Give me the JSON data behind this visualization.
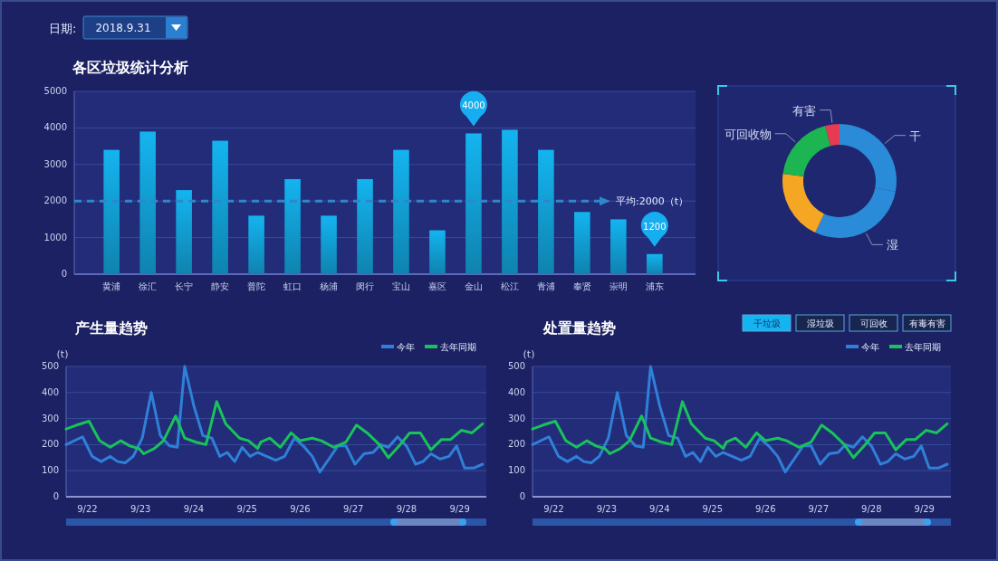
{
  "chart_data": [
    {
      "type": "bar",
      "title": "各区垃圾统计分析",
      "categories": [
        "黄浦",
        "徐汇",
        "长宁",
        "静安",
        "普陀",
        "虹口",
        "杨浦",
        "闵行",
        "宝山",
        "嘉区",
        "金山",
        "松江",
        "青浦",
        "奉贤",
        "崇明",
        "浦东"
      ],
      "values": [
        3400,
        3900,
        2300,
        3650,
        1600,
        2600,
        1600,
        2600,
        3400,
        1200,
        3850,
        3950,
        3400,
        1700,
        1500,
        550
      ],
      "color": "#14b4f0",
      "ylim": [
        0,
        5000
      ],
      "yticks": [
        0,
        1000,
        2000,
        3000,
        4000,
        5000
      ],
      "grid": "y",
      "ref_lines": [
        {
          "axis": "y",
          "value": 2000,
          "label": "平均:2000（t）",
          "color": "#2f86cc",
          "line_style": "dashed"
        }
      ],
      "annotations": [
        "日期:",
        "2018.9.31",
        "4000",
        "1200"
      ]
    },
    {
      "type": "donut",
      "categories": [
        "干",
        "湿",
        null,
        "可回收物",
        "有害"
      ],
      "values": [
        28,
        29,
        20,
        19,
        4
      ],
      "colors": [
        "#2a8bd8",
        "#2a8bd8",
        "#f5a623",
        "#1db552",
        "#e83a50"
      ]
    },
    {
      "type": "line",
      "title": "产生量趋势",
      "ylabel": "(t)",
      "xlim": [
        "--09-21T14:24",
        "--09-29T12:00"
      ],
      "xticks": [
        {
          "value": "--09-22",
          "label": "9/22"
        },
        {
          "value": "--09-23",
          "label": "9/23"
        },
        {
          "value": "--09-24",
          "label": "9/24"
        },
        {
          "value": "--09-25",
          "label": "9/25"
        },
        {
          "value": "--09-26",
          "label": "9/26"
        },
        {
          "value": "--09-27",
          "label": "9/27"
        },
        {
          "value": "--09-28",
          "label": "9/28"
        },
        {
          "value": "--09-29",
          "label": "9/29"
        }
      ],
      "ylim": [
        0,
        500
      ],
      "yticks": [
        0,
        100,
        200,
        300,
        400,
        500
      ],
      "grid": "y",
      "legend": "top right",
      "series": [
        {
          "name": "今年",
          "color": "#2f80d8",
          "x": [
            "--09-21T14:24",
            "--09-21T21:50",
            "--09-22T02:10",
            "--09-22T06:15",
            "--09-22T10:20",
            "--09-22T13:40",
            "--09-22T17:00",
            "--09-22T20:40",
            "--09-23T00:45",
            "--09-23T04:50",
            "--09-23T08:55",
            "--09-23T13:00",
            "--09-23T16:35",
            "--09-23T19:55",
            "--09-24T00:00",
            "--09-24T04:05",
            "--09-24T08:10",
            "--09-24T11:45",
            "--09-24T15:05",
            "--09-24T18:30",
            "--09-24T21:50",
            "--09-25T01:25",
            "--09-25T04:50",
            "--09-25T08:55",
            "--09-25T13:00",
            "--09-25T17:00",
            "--09-25T21:20",
            "--09-26T01:25",
            "--09-26T05:30",
            "--09-26T08:55",
            "--09-26T13:00",
            "--09-26T17:00",
            "--09-26T20:40",
            "--09-27T00:45",
            "--09-27T04:50",
            "--09-27T08:55",
            "--09-27T12:15",
            "--09-27T15:50",
            "--09-27T19:55",
            "--09-28T00:00",
            "--09-28T04:05",
            "--09-28T07:25",
            "--09-28T11:00",
            "--09-28T15:05",
            "--09-28T19:10",
            "--09-28T22:35",
            "--09-29T02:10",
            "--09-29T06:15",
            "--09-29T10:20"
          ],
          "values": [
            200,
            230,
            155,
            135,
            155,
            135,
            130,
            155,
            225,
            400,
            235,
            195,
            190,
            500,
            350,
            235,
            225,
            155,
            170,
            135,
            190,
            155,
            170,
            155,
            140,
            155,
            225,
            195,
            155,
            95,
            145,
            195,
            195,
            125,
            165,
            170,
            200,
            190,
            230,
            195,
            125,
            135,
            165,
            145,
            155,
            195,
            110,
            110,
            125
          ]
        },
        {
          "name": "去年同期",
          "color": "#19c25a",
          "x": [
            "--09-21T14:24",
            "--09-21T19:10",
            "--09-22T00:45",
            "--09-22T05:30",
            "--09-22T10:20",
            "--09-22T15:05",
            "--09-22T19:10",
            "--09-22T23:15",
            "--09-23T01:25",
            "--09-23T06:15",
            "--09-23T10:20",
            "--09-23T15:50",
            "--09-23T19:55",
            "--09-24T00:45",
            "--09-24T05:30",
            "--09-24T10:20",
            "--09-24T14:24",
            "--09-24T20:40",
            "--09-25T00:45",
            "--09-25T04:50",
            "--09-25T06:15",
            "--09-25T10:20",
            "--09-25T15:05",
            "--09-25T19:55",
            "--09-26T00:00",
            "--09-26T05:30",
            "--09-26T09:35",
            "--09-26T15:05",
            "--09-26T20:40",
            "--09-27T01:25",
            "--09-27T06:15",
            "--09-27T11:45",
            "--09-27T15:50",
            "--09-27T20:40",
            "--09-28T01:25",
            "--09-28T06:15",
            "--09-28T11:00",
            "--09-28T15:50",
            "--09-28T19:55",
            "--09-29T00:45",
            "--09-29T05:30",
            "--09-29T10:20"
          ],
          "values": [
            260,
            275,
            290,
            215,
            190,
            215,
            195,
            185,
            165,
            185,
            215,
            310,
            225,
            210,
            200,
            365,
            280,
            225,
            215,
            185,
            210,
            225,
            190,
            245,
            215,
            225,
            215,
            190,
            210,
            275,
            245,
            200,
            150,
            195,
            245,
            245,
            180,
            220,
            220,
            255,
            245,
            280
          ]
        }
      ]
    },
    {
      "type": "line",
      "title": "处置量趋势",
      "ylabel": "(t)",
      "xlim": [
        "--09-21T14:24",
        "--09-29T12:00"
      ],
      "xticks": [
        {
          "value": "--09-22",
          "label": "9/22"
        },
        {
          "value": "--09-23",
          "label": "9/23"
        },
        {
          "value": "--09-24",
          "label": "9/24"
        },
        {
          "value": "--09-25",
          "label": "9/25"
        },
        {
          "value": "--09-26",
          "label": "9/26"
        },
        {
          "value": "--09-27",
          "label": "9/27"
        },
        {
          "value": "--09-28",
          "label": "9/28"
        },
        {
          "value": "--09-29",
          "label": "9/29"
        }
      ],
      "ylim": [
        0,
        500
      ],
      "yticks": [
        0,
        100,
        200,
        300,
        400,
        500
      ],
      "grid": "y",
      "legend": "top right",
      "annotations": [
        "干垃圾",
        "湿垃圾",
        "可回收",
        "有毒有害"
      ],
      "series": [
        {
          "name": "今年",
          "color": "#2f80d8",
          "x": [
            "--09-21T14:24",
            "--09-21T21:50",
            "--09-22T02:10",
            "--09-22T06:15",
            "--09-22T10:20",
            "--09-22T13:40",
            "--09-22T17:00",
            "--09-22T20:40",
            "--09-23T00:45",
            "--09-23T04:50",
            "--09-23T08:55",
            "--09-23T13:00",
            "--09-23T16:35",
            "--09-23T19:55",
            "--09-24T00:00",
            "--09-24T04:05",
            "--09-24T08:10",
            "--09-24T11:45",
            "--09-24T15:05",
            "--09-24T18:30",
            "--09-24T21:50",
            "--09-25T01:25",
            "--09-25T04:50",
            "--09-25T08:55",
            "--09-25T13:00",
            "--09-25T17:00",
            "--09-25T21:20",
            "--09-26T01:25",
            "--09-26T05:30",
            "--09-26T08:55",
            "--09-26T13:00",
            "--09-26T17:00",
            "--09-26T20:40",
            "--09-27T00:45",
            "--09-27T04:50",
            "--09-27T08:55",
            "--09-27T12:15",
            "--09-27T15:50",
            "--09-27T19:55",
            "--09-28T00:00",
            "--09-28T04:05",
            "--09-28T07:25",
            "--09-28T11:00",
            "--09-28T15:05",
            "--09-28T19:10",
            "--09-28T22:35",
            "--09-29T02:10",
            "--09-29T06:15",
            "--09-29T10:20"
          ],
          "values": [
            200,
            230,
            155,
            135,
            155,
            135,
            130,
            155,
            225,
            400,
            235,
            195,
            190,
            500,
            350,
            235,
            225,
            155,
            170,
            135,
            190,
            155,
            170,
            155,
            140,
            155,
            225,
            195,
            155,
            95,
            145,
            195,
            195,
            125,
            165,
            170,
            200,
            190,
            230,
            195,
            125,
            135,
            165,
            145,
            155,
            195,
            110,
            110,
            125
          ]
        },
        {
          "name": "去年同期",
          "color": "#19c25a",
          "x": [
            "--09-21T14:24",
            "--09-21T19:10",
            "--09-22T00:45",
            "--09-22T05:30",
            "--09-22T10:20",
            "--09-22T15:05",
            "--09-22T19:10",
            "--09-22T23:15",
            "--09-23T01:25",
            "--09-23T06:15",
            "--09-23T10:20",
            "--09-23T15:50",
            "--09-23T19:55",
            "--09-24T00:45",
            "--09-24T05:30",
            "--09-24T10:20",
            "--09-24T14:24",
            "--09-24T20:40",
            "--09-25T00:45",
            "--09-25T04:50",
            "--09-25T06:15",
            "--09-25T10:20",
            "--09-25T15:05",
            "--09-25T19:55",
            "--09-26T00:00",
            "--09-26T05:30",
            "--09-26T09:35",
            "--09-26T15:05",
            "--09-26T20:40",
            "--09-27T01:25",
            "--09-27T06:15",
            "--09-27T11:45",
            "--09-27T15:50",
            "--09-27T20:40",
            "--09-28T01:25",
            "--09-28T06:15",
            "--09-28T11:00",
            "--09-28T15:50",
            "--09-28T19:55",
            "--09-29T00:45",
            "--09-29T05:30",
            "--09-29T10:20"
          ],
          "values": [
            260,
            275,
            290,
            215,
            190,
            215,
            195,
            185,
            165,
            185,
            215,
            310,
            225,
            210,
            200,
            365,
            280,
            225,
            215,
            185,
            210,
            225,
            190,
            245,
            215,
            225,
            215,
            190,
            210,
            275,
            245,
            200,
            150,
            195,
            245,
            245,
            180,
            220,
            220,
            255,
            245,
            280
          ]
        }
      ]
    }
  ]
}
